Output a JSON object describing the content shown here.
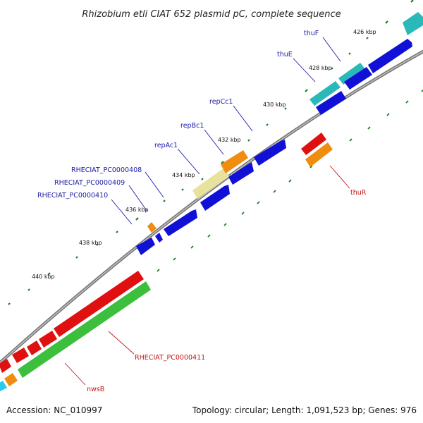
{
  "title": "Rhizobium etli CIAT 652 plasmid pC, complete sequence",
  "footer": {
    "accession": "Accession: NC_010997",
    "summary": "Topology: circular; Length: 1,091,523 bp; Genes: 976"
  },
  "kbp_labels": [
    "426 kbp",
    "428 kbp",
    "430 kbp",
    "432 kbp",
    "434 kbp",
    "436 kbp",
    "438 kbp",
    "440 kbp"
  ],
  "genes": {
    "thuF": "thuF",
    "thuE": "thuE",
    "repCc1": "repCc1",
    "repBc1": "repBc1",
    "repAc1": "repAc1",
    "p408": "RHECIAT_PC0000408",
    "p409": "RHECIAT_PC0000409",
    "p410": "RHECIAT_PC0000410",
    "thuR": "thuR",
    "p411": "RHECIAT_PC0000411",
    "nwsB": "nwsB"
  },
  "colors": {
    "backbone": "#8c8c8c",
    "blue": "#1010d6",
    "cyan": "#2ab8b8",
    "orange": "#f08c10",
    "red": "#e01010",
    "green": "#3cbf3c",
    "pale": "#e8e29c",
    "tick": "#1d7d1d"
  }
}
